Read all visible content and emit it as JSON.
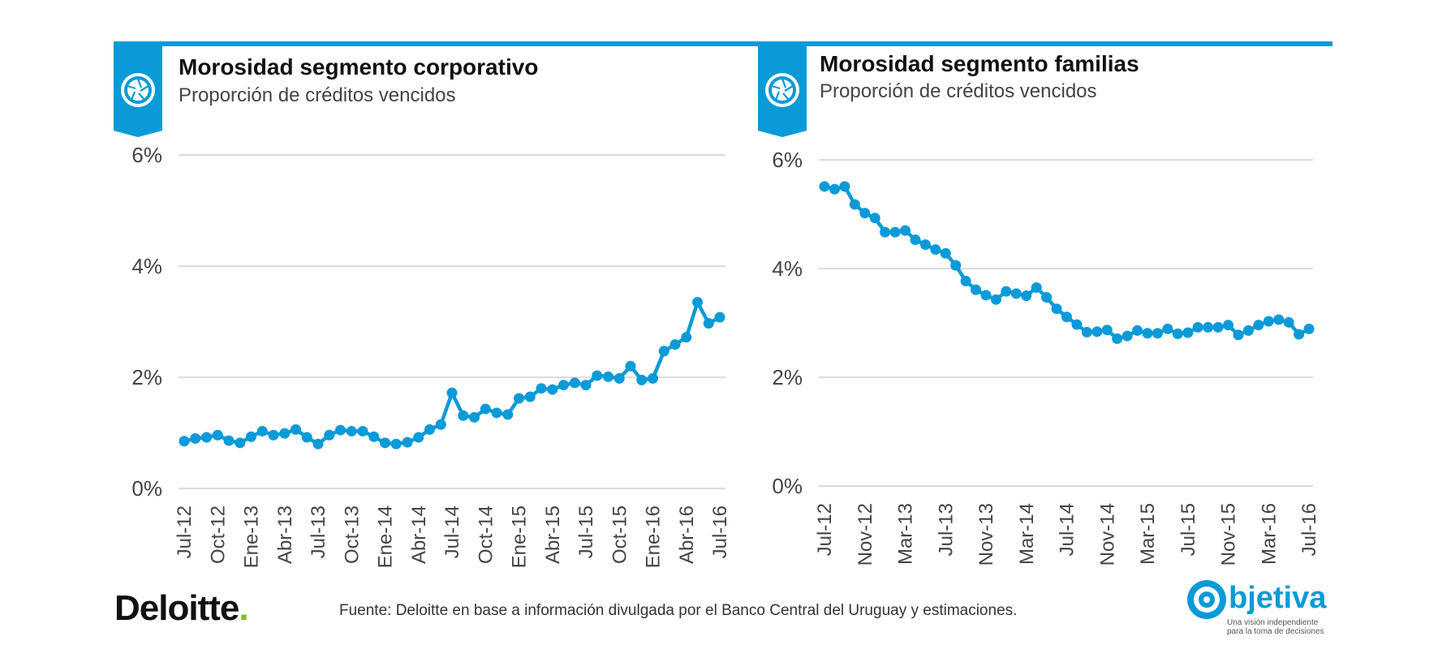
{
  "colors": {
    "accent": "#0a9ad8",
    "grid": "#d0d0d0",
    "text": "#444444",
    "deloitte_green": "#86bc25"
  },
  "charts": [
    {
      "title": "Morosidad segmento corporativo",
      "subtitle": "Proporción de créditos vencidos",
      "icon": "aperture-icon"
    },
    {
      "title": "Morosidad segmento familias",
      "subtitle": "Proporción de créditos vencidos",
      "icon": "aperture-icon"
    }
  ],
  "chart_data": [
    {
      "type": "line",
      "title": "Morosidad segmento corporativo",
      "subtitle": "Proporción de créditos vencidos",
      "y_ticks": [
        "0%",
        "2%",
        "4%",
        "6%"
      ],
      "ylim": [
        0,
        6
      ],
      "grid": true,
      "x_tick_labels": [
        "Jul-12",
        "Oct-12",
        "Ene-13",
        "Abr-13",
        "Jul-13",
        "Oct-13",
        "Ene-14",
        "Abr-14",
        "Jul-14",
        "Oct-14",
        "Ene-15",
        "Abr-15",
        "Jul-15",
        "Oct-15",
        "Ene-16",
        "Abr-16",
        "Jul-16"
      ],
      "series": [
        {
          "values": [
            0.85,
            0.9,
            0.92,
            0.96,
            0.86,
            0.82,
            0.93,
            1.03,
            0.96,
            0.99,
            1.06,
            0.92,
            0.8,
            0.96,
            1.05,
            1.03,
            1.03,
            0.93,
            0.82,
            0.8,
            0.83,
            0.92,
            1.06,
            1.15,
            1.72,
            1.31,
            1.28,
            1.43,
            1.36,
            1.33,
            1.62,
            1.65,
            1.8,
            1.78,
            1.86,
            1.9,
            1.86,
            2.03,
            2.01,
            1.98,
            2.2,
            1.95,
            1.98,
            2.47,
            2.59,
            2.72,
            3.35,
            2.97,
            3.08
          ]
        }
      ]
    },
    {
      "type": "line",
      "title": "Morosidad segmento familias",
      "subtitle": "Proporción de créditos vencidos",
      "y_ticks": [
        "0%",
        "2%",
        "4%",
        "6%"
      ],
      "ylim": [
        0,
        6
      ],
      "grid": true,
      "x_tick_labels": [
        "Jul-12",
        "Nov-12",
        "Mar-13",
        "Jul-13",
        "Nov-13",
        "Mar-14",
        "Jul-14",
        "Nov-14",
        "Mar-15",
        "Jul-15",
        "Nov-15",
        "Mar-16",
        "Jul-16"
      ],
      "series": [
        {
          "values": [
            5.51,
            5.46,
            5.51,
            5.18,
            5.02,
            4.93,
            4.67,
            4.67,
            4.7,
            4.53,
            4.44,
            4.35,
            4.28,
            4.06,
            3.77,
            3.61,
            3.51,
            3.43,
            3.58,
            3.54,
            3.5,
            3.65,
            3.47,
            3.26,
            3.11,
            2.97,
            2.83,
            2.84,
            2.87,
            2.71,
            2.76,
            2.86,
            2.81,
            2.81,
            2.89,
            2.8,
            2.82,
            2.92,
            2.92,
            2.92,
            2.96,
            2.78,
            2.86,
            2.96,
            3.03,
            3.06,
            3.01,
            2.79,
            2.89
          ]
        }
      ]
    }
  ],
  "source": "Fuente: Deloitte en base a información divulgada por el Banco Central del Uruguay y estimaciones.",
  "logos": {
    "deloitte": "Deloitte",
    "objetiva_word": "bjetiva",
    "objetiva_tagline_1": "Una visión independiente",
    "objetiva_tagline_2": "para la toma de decisiones"
  }
}
